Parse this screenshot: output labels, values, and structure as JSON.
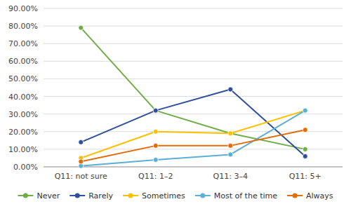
{
  "chart_data": {
    "type": "line",
    "categories": [
      "Q11: not sure",
      "Q11: 1–2",
      "Q11: 3–4",
      "Q11: 5+"
    ],
    "series": [
      {
        "name": "Never",
        "color": "#70ad47",
        "marker": "circle",
        "line_style": "solid",
        "values": [
          79.0,
          32.0,
          19.0,
          10.0
        ]
      },
      {
        "name": "Rarely",
        "color": "#2e4f9e",
        "marker": "circle",
        "line_style": "solid",
        "values": [
          14.0,
          32.0,
          44.0,
          6.0
        ]
      },
      {
        "name": "Sometimes",
        "color": "#ffc000",
        "marker": "circle",
        "line_style": "solid",
        "values": [
          5.0,
          20.0,
          19.0,
          32.0
        ]
      },
      {
        "name": "Most of the time",
        "color": "#5bafd6",
        "marker": "circle",
        "line_style": "solid",
        "values": [
          0.5,
          4.0,
          7.0,
          32.0
        ]
      },
      {
        "name": "Always",
        "color": "#e36c09",
        "marker": "circle",
        "line_style": "solid",
        "values": [
          3.0,
          12.0,
          12.0,
          21.0
        ]
      }
    ],
    "ylim": [
      0,
      90
    ],
    "yticks": [
      {
        "value": 0,
        "label": "0.00%"
      },
      {
        "value": 10,
        "label": "10.00%"
      },
      {
        "value": 20,
        "label": "20.00%"
      },
      {
        "value": 30,
        "label": "30.00%"
      },
      {
        "value": 40,
        "label": "40.00%"
      },
      {
        "value": 50,
        "label": "50.00%"
      },
      {
        "value": 60,
        "label": "60.00%"
      },
      {
        "value": 70,
        "label": "70.00%"
      },
      {
        "value": 80,
        "label": "80.00%"
      },
      {
        "value": 90,
        "label": "90.00%"
      }
    ],
    "grid": true,
    "legend": "bottom"
  }
}
